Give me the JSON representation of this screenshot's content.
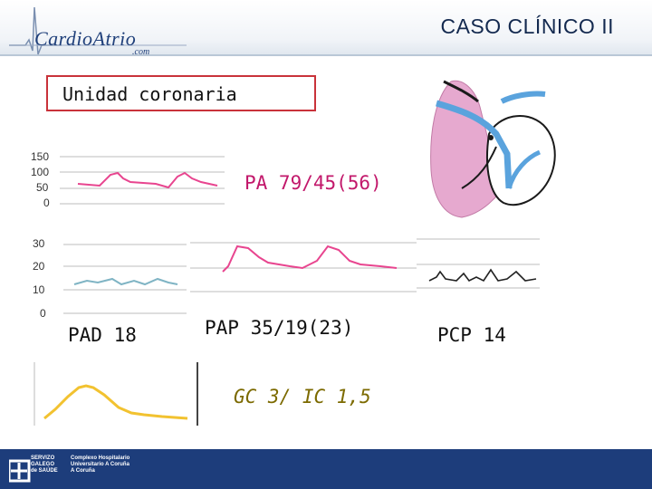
{
  "header": {
    "logo_text": "CardioAtrio",
    "logo_sub": ".com",
    "title": "CASO CLÍNICO II"
  },
  "unit": {
    "label": "Unidad coronaria"
  },
  "measurements": {
    "pa": "PA 79/45(56)",
    "pad": "PAD 18",
    "pap": "PAP 35/19(23)",
    "pcp": "PCP 14",
    "gc": "GC 3/ IC 1,5"
  },
  "pa_axis": [
    "150",
    "100",
    "50",
    "0"
  ],
  "pad_axis": [
    "30",
    "20",
    "10",
    "0"
  ],
  "footer": {
    "org1": [
      "SERVIZO",
      "GALEGO",
      "de SAÚDE"
    ],
    "org2": [
      "Complexo Hospitalario",
      "Universitario A Coruña",
      "A Coruña"
    ]
  },
  "colors": {
    "title": "#13294f",
    "wave_pink": "#e8458f",
    "wave_teal": "#7fb4c4",
    "wave_black": "#222222",
    "wave_yellow": "#f2c230",
    "footer": "#1d3d7b",
    "unit_border": "#c9323a"
  }
}
